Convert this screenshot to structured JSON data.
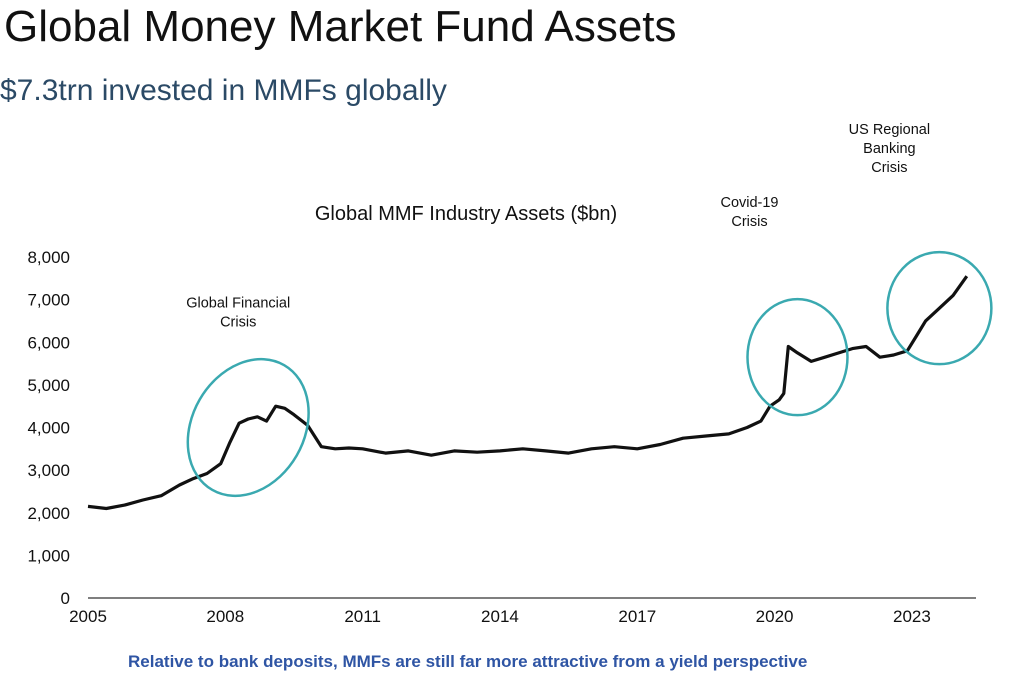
{
  "page": {
    "title": "Global Money Market Fund Assets",
    "subtitle": "$7.3trn invested in MMFs globally",
    "footer": "Relative to bank deposits, MMFs are still far more attractive from a yield perspective"
  },
  "chart_data": {
    "type": "line",
    "title": "Global MMF Industry Assets ($bn)",
    "xlabel": "",
    "ylabel": "",
    "xlim": [
      2005,
      2024.4
    ],
    "ylim": [
      0,
      8000
    ],
    "grid": false,
    "line_color": "#111111",
    "circle_color": "#3aa9b0",
    "yticks": [
      {
        "value": 0,
        "label": "0"
      },
      {
        "value": 1000,
        "label": "1,000"
      },
      {
        "value": 2000,
        "label": "2,000"
      },
      {
        "value": 3000,
        "label": "3,000"
      },
      {
        "value": 4000,
        "label": "4,000"
      },
      {
        "value": 5000,
        "label": "5,000"
      },
      {
        "value": 6000,
        "label": "6,000"
      },
      {
        "value": 7000,
        "label": "7,000"
      },
      {
        "value": 8000,
        "label": "8,000"
      }
    ],
    "xticks": [
      {
        "value": 2005,
        "label": "2005"
      },
      {
        "value": 2008,
        "label": "2008"
      },
      {
        "value": 2011,
        "label": "2011"
      },
      {
        "value": 2014,
        "label": "2014"
      },
      {
        "value": 2017,
        "label": "2017"
      },
      {
        "value": 2020,
        "label": "2020"
      },
      {
        "value": 2023,
        "label": "2023"
      }
    ],
    "series": [
      {
        "x": [
          2005.0,
          2005.4,
          2005.8,
          2006.2,
          2006.6,
          2007.0,
          2007.3,
          2007.6,
          2007.9,
          2008.1,
          2008.3,
          2008.5,
          2008.7,
          2008.9,
          2009.1,
          2009.3,
          2009.5,
          2009.8,
          2010.1,
          2010.4,
          2010.7,
          2011.0,
          2011.5,
          2012.0,
          2012.5,
          2013.0,
          2013.5,
          2014.0,
          2014.5,
          2015.0,
          2015.5,
          2016.0,
          2016.5,
          2017.0,
          2017.5,
          2018.0,
          2018.5,
          2019.0,
          2019.4,
          2019.7,
          2019.9,
          2020.1,
          2020.2,
          2020.3,
          2020.5,
          2020.8,
          2021.1,
          2021.4,
          2021.7,
          2022.0,
          2022.3,
          2022.6,
          2022.9,
          2023.1,
          2023.3,
          2023.6,
          2023.9,
          2024.2
        ],
        "y": [
          2150,
          2100,
          2180,
          2300,
          2400,
          2650,
          2800,
          2920,
          3150,
          3650,
          4100,
          4200,
          4250,
          4150,
          4500,
          4450,
          4300,
          4050,
          3550,
          3500,
          3520,
          3500,
          3400,
          3450,
          3350,
          3450,
          3420,
          3450,
          3500,
          3450,
          3400,
          3500,
          3550,
          3500,
          3600,
          3750,
          3800,
          3850,
          4000,
          4150,
          4500,
          4650,
          4800,
          5900,
          5750,
          5550,
          5650,
          5750,
          5850,
          5900,
          5650,
          5700,
          5800,
          6150,
          6500,
          6800,
          7100,
          7550
        ]
      }
    ],
    "annotations": [
      {
        "label_lines": [
          "Global Financial",
          "Crisis"
        ],
        "x": 2008.5,
        "y": 4000
      },
      {
        "label_lines": [
          "Covid-19",
          "Crisis"
        ],
        "x": 2020.5,
        "y": 5650
      },
      {
        "label_lines": [
          "US Regional",
          "Banking",
          "Crisis"
        ],
        "x": 2023.6,
        "y": 6800
      }
    ]
  }
}
